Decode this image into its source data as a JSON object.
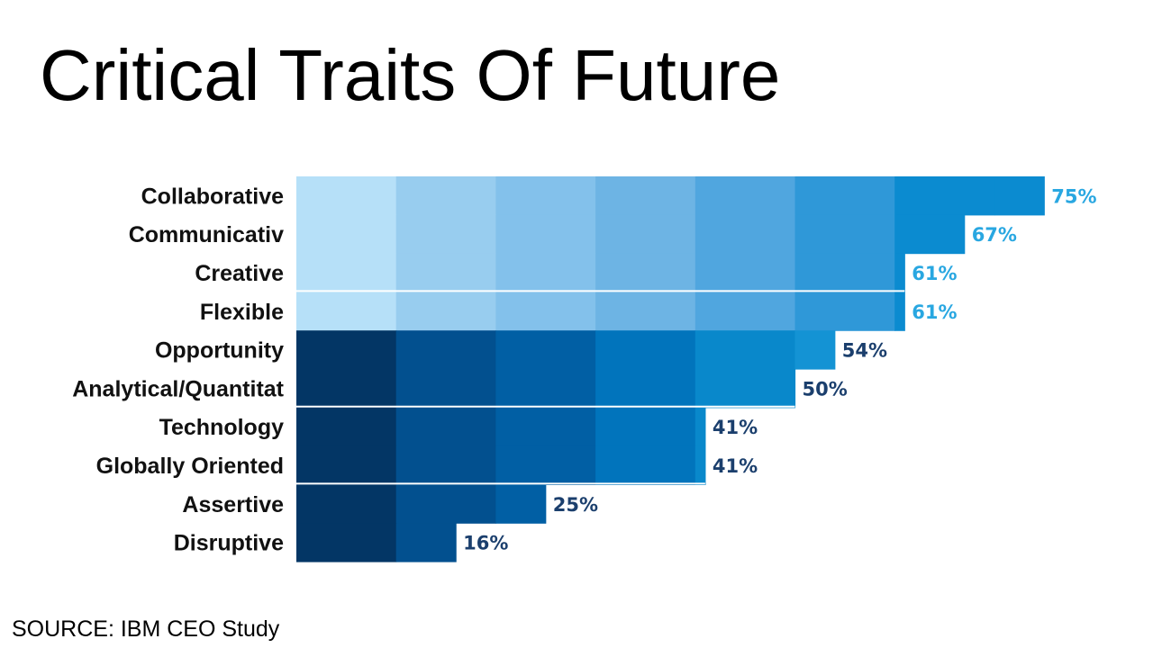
{
  "title": "Critical Traits Of Future",
  "source": "SOURCE: IBM CEO Study",
  "colors": {
    "light_tiers": [
      "#b6e0f8",
      "#98cdef",
      "#83c1eb",
      "#6db4e4",
      "#50a6df",
      "#2f98d8",
      "#0b8bd0",
      "#0b8bd0"
    ],
    "dark_tiers": [
      "#033665",
      "#02508f",
      "#015fa4",
      "#0174bc",
      "#0988cb",
      "#1493d4",
      "#1d9ad8",
      "#1d9ad8"
    ],
    "light_value_text": "#29a7e1",
    "dark_value_text": "#1b3f6d",
    "category_text": "#111111"
  },
  "chart_data": {
    "type": "bar",
    "orientation": "horizontal",
    "categories": [
      "Collaborative",
      "Communicativ",
      "Creative",
      "Flexible",
      "Opportunity",
      "Analytical/Quantitat",
      "Technology",
      "Globally Oriented",
      "Assertive",
      "Disruptive"
    ],
    "values": [
      75,
      67,
      61,
      61,
      54,
      50,
      41,
      41,
      25,
      16
    ],
    "value_labels": [
      "75%",
      "67%",
      "61%",
      "61%",
      "54%",
      "50%",
      "41%",
      "41%",
      "25%",
      "16%"
    ],
    "groups": [
      "light",
      "light",
      "light",
      "light",
      "dark",
      "dark",
      "dark",
      "dark",
      "dark",
      "dark"
    ],
    "xlim": [
      0,
      80
    ],
    "tier_width": 10,
    "grid": false,
    "legend": "none"
  }
}
